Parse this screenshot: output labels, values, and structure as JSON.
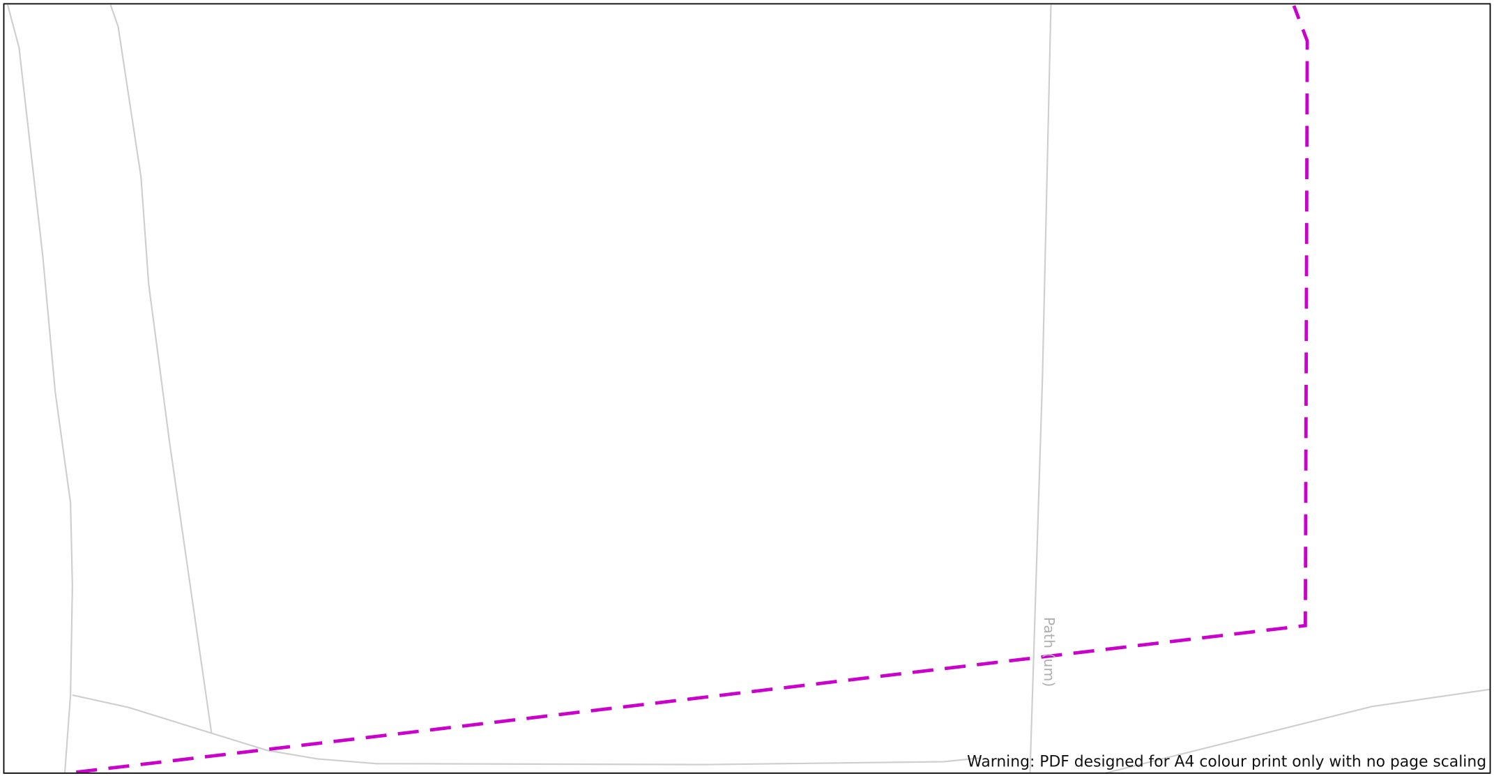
{
  "labels": {
    "path": "Path (um)"
  },
  "warning": "Warning: PDF designed for A4 colour print only with no page scaling"
}
